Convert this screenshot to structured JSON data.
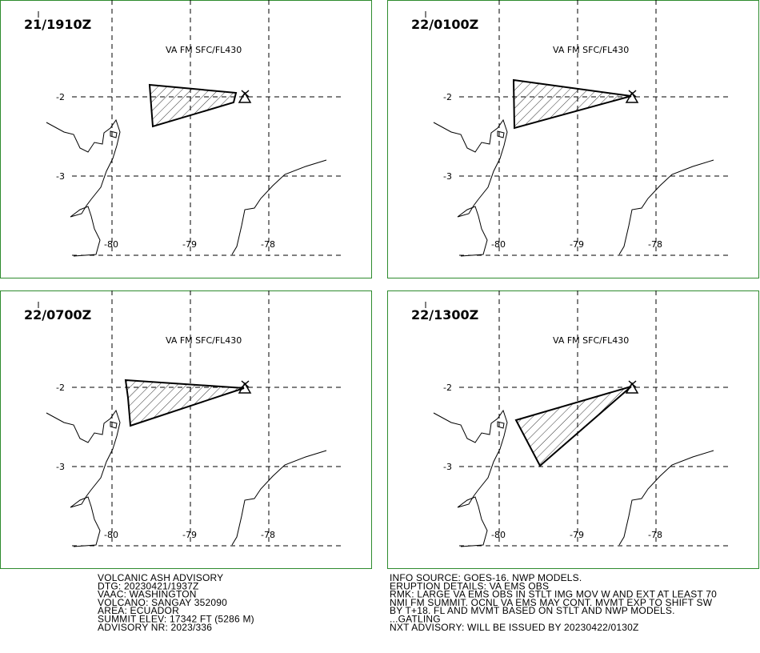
{
  "panels": [
    {
      "time": "21/1910Z",
      "label": "VA FM SFC/FL430"
    },
    {
      "time": "22/0100Z",
      "label": "VA FM SFC/FL430"
    },
    {
      "time": "22/0700Z",
      "label": "VA FM SFC/FL430"
    },
    {
      "time": "22/1300Z",
      "label": "VA FM SFC/FL430"
    }
  ],
  "grid": {
    "lat": [
      "-2",
      "-3"
    ],
    "lon": [
      "-80",
      "-79",
      "-78"
    ]
  },
  "advisory": {
    "left": [
      "VOLCANIC ASH ADVISORY",
      "DTG: 20230421/1937Z",
      "VAAC: WASHINGTON",
      "VOLCANO: SANGAY 352090",
      "AREA: ECUADOR",
      "SUMMIT ELEV: 17342 FT (5286 M)",
      "ADVISORY NR: 2023/336"
    ],
    "right": [
      "INFO SOURCE: GOES-16. NWP MODELS.",
      "ERUPTION DETAILS: VA EMS OBS",
      "RMK: LARGE VA EMS OBS IN STLT IMG MOV W AND EXT AT LEAST 70",
      "NMI FM SUMMIT. OCNL VA EMS MAY CONT. MVMT EXP TO SHIFT SW",
      "BY T+18. FL AND MVMT BASED ON STLT AND NWP MODELS.",
      "...GATLING",
      "NXT ADVISORY: WILL BE ISSUED BY 20230422/0130Z"
    ]
  }
}
